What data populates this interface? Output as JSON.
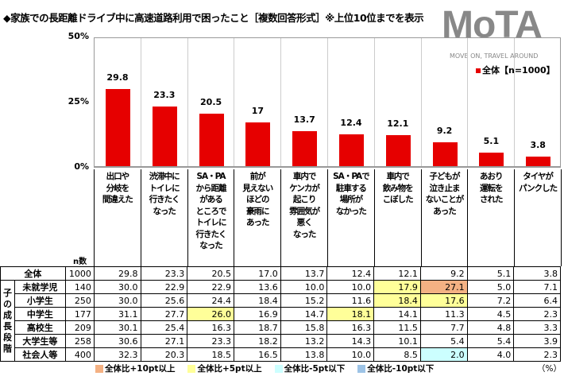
{
  "title": "◆家族での長距離ドライブ中に高速道路利用で困ったこと［複数回答形式］※上位10位までを表示",
  "logo": {
    "text": "MoTA",
    "tagline": "MOVE ON, TRAVEL AROUND"
  },
  "legend": "全体【n=1000】",
  "colors": {
    "bar": "#e60000",
    "orange": "#f4b183",
    "yellow": "#ffff99",
    "cyan": "#ccffff",
    "blue": "#9dc3e6"
  },
  "chart_data": {
    "type": "bar",
    "title": "家族での長距離ドライブ中に高速道路利用で困ったこと",
    "ylim": [
      0,
      50
    ],
    "yticks": [
      "0%",
      "25%",
      "50%"
    ],
    "categories": [
      "出口や分岐を間違えた",
      "渋滞中にトイレに行きたくなった",
      "SA・PAから距離があるところでトイレに行きたくなった",
      "前が見えないほどの豪雨にあった",
      "車内でケンカが起こり雰囲気が悪くなった",
      "SA・PAで駐車する場所がなかった",
      "車内で飲み物をこぼした",
      "子どもが泣き止まないことがあった",
      "あおり運転をされた",
      "タイヤがパンクした"
    ],
    "category_lines": [
      [
        "出口や",
        "分岐を",
        "間違えた"
      ],
      [
        "渋滞中に",
        "トイレに",
        "行きたく",
        "なった"
      ],
      [
        "SA・PA",
        "から距離",
        "がある",
        "ところで",
        "トイレに",
        "行きたく",
        "なった"
      ],
      [
        "前が",
        "見えない",
        "ほどの",
        "豪雨に",
        "あった"
      ],
      [
        "車内で",
        "ケンカが",
        "起こり",
        "雰囲気が",
        "悪く",
        "なった"
      ],
      [
        "SA・PAで",
        "駐車する",
        "場所が",
        "なかった"
      ],
      [
        "車内で",
        "飲み物を",
        "こぼした"
      ],
      [
        "子どもが",
        "泣き止ま",
        "ないことが",
        "あった"
      ],
      [
        "あおり",
        "運転を",
        "された"
      ],
      [
        "タイヤが",
        "パンクした"
      ]
    ],
    "series": [
      {
        "name": "全体【n=1000】",
        "values": [
          29.8,
          23.3,
          20.5,
          17.0,
          13.7,
          12.4,
          12.1,
          9.2,
          5.1,
          3.8
        ]
      }
    ]
  },
  "table": {
    "n_header": "n数",
    "group_label": "子の成長段階",
    "total": {
      "name": "全体",
      "n": "1000",
      "values": [
        "29.8",
        "23.3",
        "20.5",
        "17.0",
        "13.7",
        "12.4",
        "12.1",
        "9.2",
        "5.1",
        "3.8"
      ]
    },
    "rows": [
      {
        "name": "未就学児",
        "n": "140",
        "values": [
          "30.0",
          "22.9",
          "22.9",
          "13.6",
          "10.0",
          "10.0",
          "17.9",
          "27.1",
          "5.0",
          "7.1"
        ],
        "hl": [
          "",
          "",
          "",
          "",
          "",
          "",
          "yellow",
          "orange",
          "",
          ""
        ]
      },
      {
        "name": "小学生",
        "n": "250",
        "values": [
          "30.0",
          "25.6",
          "24.4",
          "18.4",
          "15.2",
          "11.6",
          "18.4",
          "17.6",
          "7.2",
          "6.4"
        ],
        "hl": [
          "",
          "",
          "",
          "",
          "",
          "",
          "yellow",
          "yellow",
          "",
          ""
        ]
      },
      {
        "name": "中学生",
        "n": "177",
        "values": [
          "31.1",
          "27.7",
          "26.0",
          "16.9",
          "14.7",
          "18.1",
          "14.1",
          "11.3",
          "4.5",
          "2.3"
        ],
        "hl": [
          "",
          "",
          "yellow",
          "",
          "",
          "yellow",
          "",
          "",
          "",
          ""
        ]
      },
      {
        "name": "高校生",
        "n": "209",
        "values": [
          "30.1",
          "25.4",
          "16.3",
          "18.7",
          "15.8",
          "16.3",
          "11.5",
          "7.7",
          "4.8",
          "3.3"
        ],
        "hl": [
          "",
          "",
          "",
          "",
          "",
          "",
          "",
          "",
          "",
          ""
        ]
      },
      {
        "name": "大学生等",
        "n": "258",
        "values": [
          "30.6",
          "27.1",
          "23.3",
          "18.2",
          "13.2",
          "14.3",
          "10.1",
          "5.4",
          "5.4",
          "3.9"
        ],
        "hl": [
          "",
          "",
          "",
          "",
          "",
          "",
          "",
          "",
          "",
          ""
        ]
      },
      {
        "name": "社会人等",
        "n": "400",
        "values": [
          "32.3",
          "20.3",
          "18.5",
          "16.5",
          "13.8",
          "10.0",
          "8.5",
          "2.0",
          "4.0",
          "2.3"
        ],
        "hl": [
          "",
          "",
          "",
          "",
          "",
          "",
          "",
          "cyan",
          "",
          ""
        ]
      }
    ]
  },
  "keys": [
    {
      "label": "全体比+10pt以上",
      "color": "orange"
    },
    {
      "label": "全体比+5pt以上",
      "color": "yellow"
    },
    {
      "label": "全体比-5pt以下",
      "color": "cyan"
    },
    {
      "label": "全体比-10pt以下",
      "color": "blue"
    }
  ],
  "unit": "（%）"
}
